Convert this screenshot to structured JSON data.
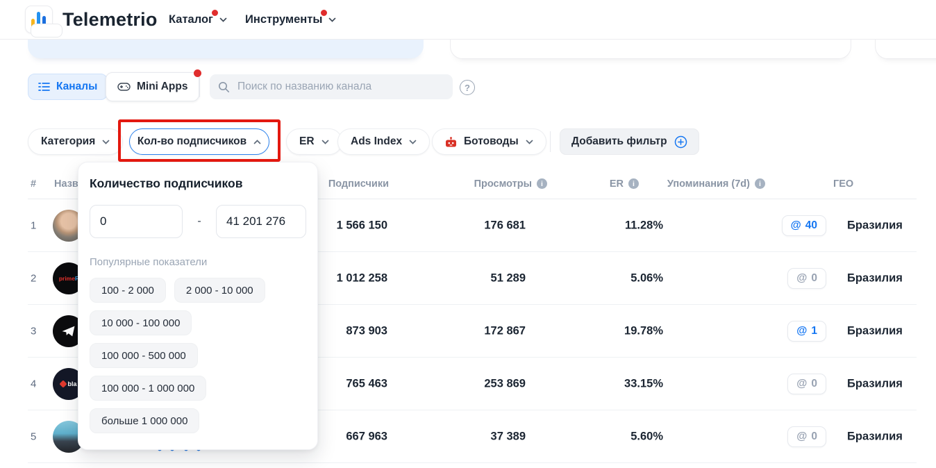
{
  "header": {
    "brand": "Telemetrio",
    "nav_catalog": "Каталог",
    "nav_tools": "Инструменты"
  },
  "toolbar": {
    "channels_tab": "Каналы",
    "mini_apps_tab": "Mini Apps",
    "search_placeholder": "Поиск по названию канала"
  },
  "filters": {
    "category": "Категория",
    "subscribers": "Кол-во подписчиков",
    "er": "ER",
    "ads_index": "Ads Index",
    "bots": "Ботоводы",
    "add_filter": "Добавить фильтр"
  },
  "subscribers_dropdown": {
    "title": "Количество подписчиков",
    "min": "0",
    "separator": "-",
    "max": "41 201 276",
    "popular_label": "Популярные показатели",
    "presets": [
      "100 - 2 000",
      "2 000 - 10 000",
      "10 000 - 100 000",
      "100 000 - 500 000",
      "100 000 - 1 000 000",
      "больше 1 000 000"
    ]
  },
  "table": {
    "headers": {
      "rank": "#",
      "name": "Название",
      "subscribers": "Подписчики",
      "views": "Просмотры",
      "er": "ER",
      "mentions": "Упоминания (7d)",
      "geo": "ГЕО"
    },
    "rows": [
      {
        "rank": "1",
        "avatar": "photo-man",
        "avatar_text": "",
        "subscribers": "1 566 150",
        "views": "176 681",
        "er": "11.28%",
        "mentions": "40",
        "mentions_active": true,
        "geo": "Бразилия"
      },
      {
        "rank": "2",
        "avatar": "prime-logo",
        "avatar_text": "primeF",
        "subscribers": "1 012 258",
        "views": "51 289",
        "er": "5.06%",
        "mentions": "0",
        "mentions_active": false,
        "geo": "Бразилия"
      },
      {
        "rank": "3",
        "avatar": "telegram-logo",
        "avatar_text": "",
        "subscribers": "873 903",
        "views": "172 867",
        "er": "19.78%",
        "mentions": "1",
        "mentions_active": true,
        "geo": "Бразилия"
      },
      {
        "rank": "4",
        "avatar": "blaze-logo",
        "avatar_text": "bla",
        "subscribers": "765 463",
        "views": "253 869",
        "er": "33.15%",
        "mentions": "0",
        "mentions_active": false,
        "geo": "Бразилия"
      },
      {
        "rank": "5",
        "avatar": "photo-man-2",
        "avatar_text": "",
        "subscribers": "667 963",
        "views": "37 389",
        "er": "5.60%",
        "mentions": "0",
        "mentions_active": false,
        "geo": "Бразилия"
      }
    ]
  },
  "colors": {
    "accent_blue": "#1476f2",
    "annotation_red": "#e3180f",
    "notification_red": "#e02d2d",
    "bot_icon_red": "#d93025"
  }
}
